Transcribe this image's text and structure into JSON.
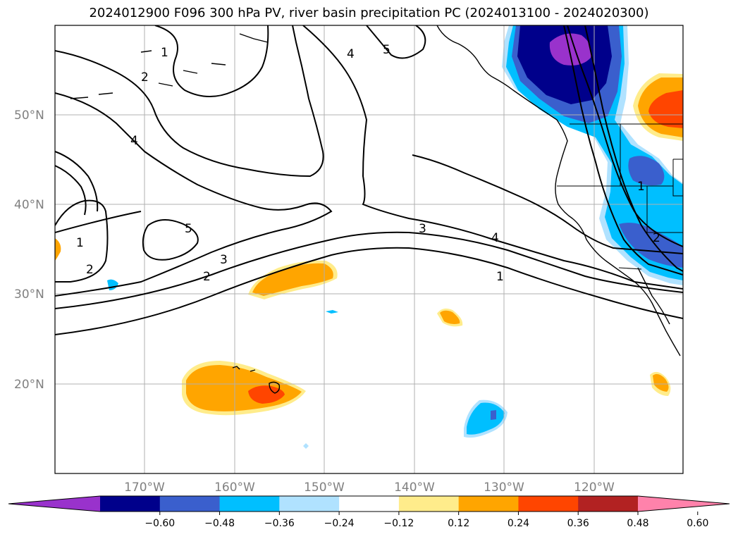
{
  "chart_data": {
    "type": "map-contour",
    "title": "2024012900 F096 300 hPa PV, river basin precipitation PC (2024013100 - 2024020300)",
    "lon_ticks": [
      "170°W",
      "160°W",
      "150°W",
      "140°W",
      "130°W",
      "120°W"
    ],
    "lat_ticks": [
      "50°N",
      "40°N",
      "30°N",
      "20°N"
    ],
    "colorbar": {
      "ticks": [
        "−0.60",
        "−0.48",
        "−0.36",
        "−0.24",
        "−0.12",
        "0.12",
        "0.24",
        "0.36",
        "0.48",
        "0.60"
      ],
      "colors": [
        "#9932cc",
        "#00008b",
        "#3a5fcd",
        "#00bfff",
        "#b0e2ff",
        "#ffffff",
        "#ffec8b",
        "#ffa500",
        "#ff4500",
        "#b22222",
        "#ff82ab"
      ],
      "extend": "both"
    },
    "pv_contour_labels": [
      "1",
      "2",
      "4",
      "4",
      "5",
      "5",
      "1",
      "2",
      "3",
      "2",
      "3",
      "4",
      "1",
      "1",
      "2"
    ],
    "grid": true
  }
}
